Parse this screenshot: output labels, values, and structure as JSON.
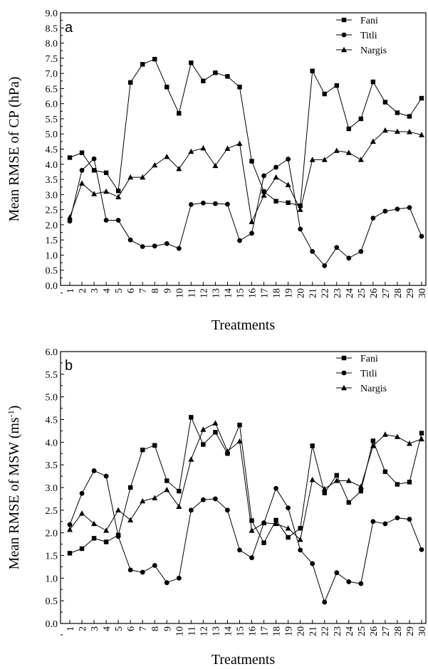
{
  "chart_data": [
    {
      "type": "line",
      "panel_label": "a",
      "title": "",
      "xlabel": "Treatments",
      "ylabel": "Mean RMSE of CP (hPa)",
      "x": [
        1,
        2,
        3,
        4,
        5,
        6,
        7,
        8,
        9,
        10,
        11,
        12,
        13,
        14,
        15,
        16,
        17,
        18,
        19,
        20,
        21,
        22,
        23,
        24,
        25,
        26,
        27,
        28,
        29,
        30
      ],
      "x_tick_labels": [
        "1",
        "2",
        "3",
        "4",
        "5",
        "6",
        "7",
        "8",
        "9",
        "10",
        "11",
        "12",
        "13",
        "14",
        "15",
        "16",
        "17",
        "18",
        "19",
        "20",
        "21",
        "22",
        "23",
        "24",
        "25",
        "26",
        "27",
        "28",
        "29",
        "30"
      ],
      "ylim": [
        0,
        9
      ],
      "y_tick_labels": [
        "0.0",
        "0.5",
        "1.0",
        "1.5",
        "2.0",
        "2.5",
        "3.0",
        "3.5",
        "4.0",
        "4.5",
        "5.0",
        "5.5",
        "6.0",
        "6.5",
        "7.0",
        "7.5",
        "8.0",
        "8.5",
        "9.0"
      ],
      "legend_position": "top-right",
      "grid": false,
      "series": [
        {
          "name": "Fani",
          "marker": "square",
          "values": [
            4.22,
            4.38,
            3.8,
            3.72,
            3.12,
            6.7,
            7.3,
            7.47,
            6.55,
            5.68,
            7.35,
            6.75,
            7.02,
            6.9,
            6.55,
            4.1,
            3.1,
            2.78,
            2.73,
            2.63,
            7.08,
            6.32,
            6.6,
            5.17,
            5.5,
            6.72,
            6.05,
            5.7,
            5.58,
            6.18
          ]
        },
        {
          "name": "Titli",
          "marker": "circle",
          "values": [
            2.12,
            3.8,
            4.18,
            2.15,
            2.15,
            1.5,
            1.28,
            1.3,
            1.38,
            1.22,
            2.67,
            2.72,
            2.7,
            2.68,
            1.48,
            1.72,
            3.62,
            3.9,
            4.17,
            1.86,
            1.12,
            0.65,
            1.25,
            0.9,
            1.12,
            2.22,
            2.45,
            2.52,
            2.57,
            1.62
          ]
        },
        {
          "name": "Nargis",
          "marker": "triangle",
          "values": [
            2.25,
            3.37,
            3.02,
            3.1,
            2.92,
            3.57,
            3.57,
            3.97,
            4.25,
            3.85,
            4.42,
            4.53,
            3.95,
            4.52,
            4.68,
            2.1,
            2.97,
            3.57,
            3.32,
            2.5,
            4.15,
            4.15,
            4.45,
            4.38,
            4.15,
            4.75,
            5.12,
            5.08,
            5.07,
            4.97
          ]
        }
      ]
    },
    {
      "type": "line",
      "panel_label": "b",
      "title": "",
      "xlabel": "Treatments",
      "ylabel": "Mean RMSE of MSW (ms",
      "ylabel_superscript": "-1",
      "ylabel_suffix": ")",
      "x": [
        1,
        2,
        3,
        4,
        5,
        6,
        7,
        8,
        9,
        10,
        11,
        12,
        13,
        14,
        15,
        16,
        17,
        18,
        19,
        20,
        21,
        22,
        23,
        24,
        25,
        26,
        27,
        28,
        29,
        30
      ],
      "x_tick_labels": [
        "1",
        "2",
        "3",
        "4",
        "5",
        "6",
        "7",
        "8",
        "9",
        "10",
        "11",
        "12",
        "13",
        "14",
        "15",
        "16",
        "17",
        "18",
        "19",
        "20",
        "21",
        "22",
        "23",
        "24",
        "25",
        "26",
        "27",
        "28",
        "29",
        "30"
      ],
      "ylim": [
        0,
        6
      ],
      "y_tick_labels": [
        "0.0",
        "0.5",
        "1.0",
        "1.5",
        "2.0",
        "2.5",
        "3.0",
        "3.5",
        "4.0",
        "4.5",
        "5.0",
        "5.5",
        "6.0"
      ],
      "legend_position": "top-right",
      "grid": false,
      "series": [
        {
          "name": "Fani",
          "marker": "square",
          "values": [
            1.55,
            1.65,
            1.88,
            1.8,
            1.95,
            3.0,
            3.83,
            3.93,
            3.15,
            2.92,
            4.55,
            3.95,
            4.22,
            3.75,
            4.38,
            2.27,
            1.78,
            2.28,
            1.9,
            2.1,
            3.92,
            2.88,
            3.27,
            2.67,
            2.92,
            4.03,
            3.35,
            3.07,
            3.12,
            4.2
          ]
        },
        {
          "name": "Titli",
          "marker": "circle",
          "values": [
            2.18,
            2.87,
            3.37,
            3.25,
            1.92,
            1.18,
            1.13,
            1.28,
            0.9,
            1.0,
            2.5,
            2.73,
            2.75,
            2.5,
            1.62,
            1.45,
            2.22,
            2.98,
            2.55,
            1.62,
            1.32,
            0.47,
            1.12,
            0.92,
            0.88,
            2.25,
            2.2,
            2.33,
            2.3,
            1.63
          ]
        },
        {
          "name": "Nargis",
          "marker": "triangle",
          "values": [
            2.07,
            2.43,
            2.2,
            2.05,
            2.5,
            2.28,
            2.7,
            2.77,
            2.95,
            2.58,
            3.62,
            4.28,
            4.42,
            3.8,
            4.02,
            2.05,
            2.22,
            2.2,
            2.1,
            1.85,
            3.17,
            2.97,
            3.15,
            3.15,
            3.02,
            3.92,
            4.17,
            4.12,
            3.97,
            4.07
          ]
        }
      ]
    }
  ]
}
